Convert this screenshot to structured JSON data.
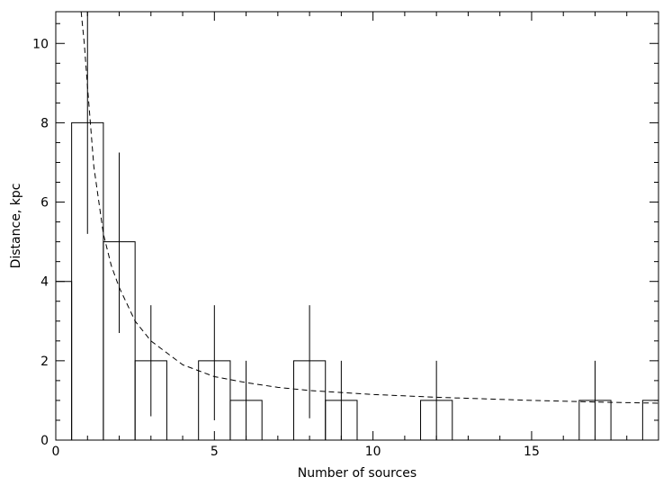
{
  "chart_data": {
    "type": "bar",
    "title": "",
    "xlabel": "Number of sources",
    "ylabel": "Distance, kpc",
    "xlim": [
      0,
      19
    ],
    "ylim": [
      0,
      10.8
    ],
    "grid": false,
    "x_ticks": [
      0,
      5,
      10,
      15
    ],
    "y_ticks": [
      0,
      2,
      4,
      6,
      8,
      10
    ],
    "histogram": [
      {
        "x0": 0.0,
        "x1": 0.5,
        "y": 4
      },
      {
        "x0": 0.5,
        "x1": 1.5,
        "y": 8
      },
      {
        "x0": 1.5,
        "x1": 2.5,
        "y": 5
      },
      {
        "x0": 2.5,
        "x1": 3.5,
        "y": 2
      },
      {
        "x0": 3.5,
        "x1": 4.5,
        "y": 0
      },
      {
        "x0": 4.5,
        "x1": 5.5,
        "y": 2
      },
      {
        "x0": 5.5,
        "x1": 6.5,
        "y": 1
      },
      {
        "x0": 6.5,
        "x1": 7.5,
        "y": 0
      },
      {
        "x0": 7.5,
        "x1": 8.5,
        "y": 2
      },
      {
        "x0": 8.5,
        "x1": 9.5,
        "y": 1
      },
      {
        "x0": 9.5,
        "x1": 11.5,
        "y": 0
      },
      {
        "x0": 11.5,
        "x1": 12.5,
        "y": 1
      },
      {
        "x0": 12.5,
        "x1": 16.5,
        "y": 0
      },
      {
        "x0": 16.5,
        "x1": 17.5,
        "y": 1
      },
      {
        "x0": 17.5,
        "x1": 18.5,
        "y": 0
      },
      {
        "x0": 18.5,
        "x1": 19.0,
        "y": 1
      }
    ],
    "error_bars": [
      {
        "x": 1,
        "low": 5.2,
        "high": 10.8
      },
      {
        "x": 2,
        "low": 2.7,
        "high": 7.25
      },
      {
        "x": 3,
        "low": 0.6,
        "high": 3.4
      },
      {
        "x": 5,
        "low": 0.5,
        "high": 3.4
      },
      {
        "x": 6,
        "low": 0.0,
        "high": 2.0
      },
      {
        "x": 8,
        "low": 0.55,
        "high": 3.4
      },
      {
        "x": 9,
        "low": 0.0,
        "high": 2.0
      },
      {
        "x": 12,
        "low": 0.0,
        "high": 2.0
      },
      {
        "x": 17,
        "low": 0.0,
        "high": 2.0
      }
    ],
    "fit_curve": {
      "style": "dashed",
      "points": [
        {
          "x": 0.8,
          "y": 10.8
        },
        {
          "x": 0.9,
          "y": 10.0
        },
        {
          "x": 1.0,
          "y": 8.9
        },
        {
          "x": 1.2,
          "y": 6.9
        },
        {
          "x": 1.5,
          "y": 5.2
        },
        {
          "x": 1.75,
          "y": 4.4
        },
        {
          "x": 2.0,
          "y": 3.85
        },
        {
          "x": 2.5,
          "y": 3.0
        },
        {
          "x": 3.0,
          "y": 2.5
        },
        {
          "x": 4.0,
          "y": 1.9
        },
        {
          "x": 5.0,
          "y": 1.6
        },
        {
          "x": 6.0,
          "y": 1.45
        },
        {
          "x": 7.0,
          "y": 1.33
        },
        {
          "x": 8.0,
          "y": 1.25
        },
        {
          "x": 10.0,
          "y": 1.15
        },
        {
          "x": 12.0,
          "y": 1.08
        },
        {
          "x": 15.0,
          "y": 1.0
        },
        {
          "x": 17.0,
          "y": 0.96
        },
        {
          "x": 19.0,
          "y": 0.93
        }
      ]
    }
  }
}
